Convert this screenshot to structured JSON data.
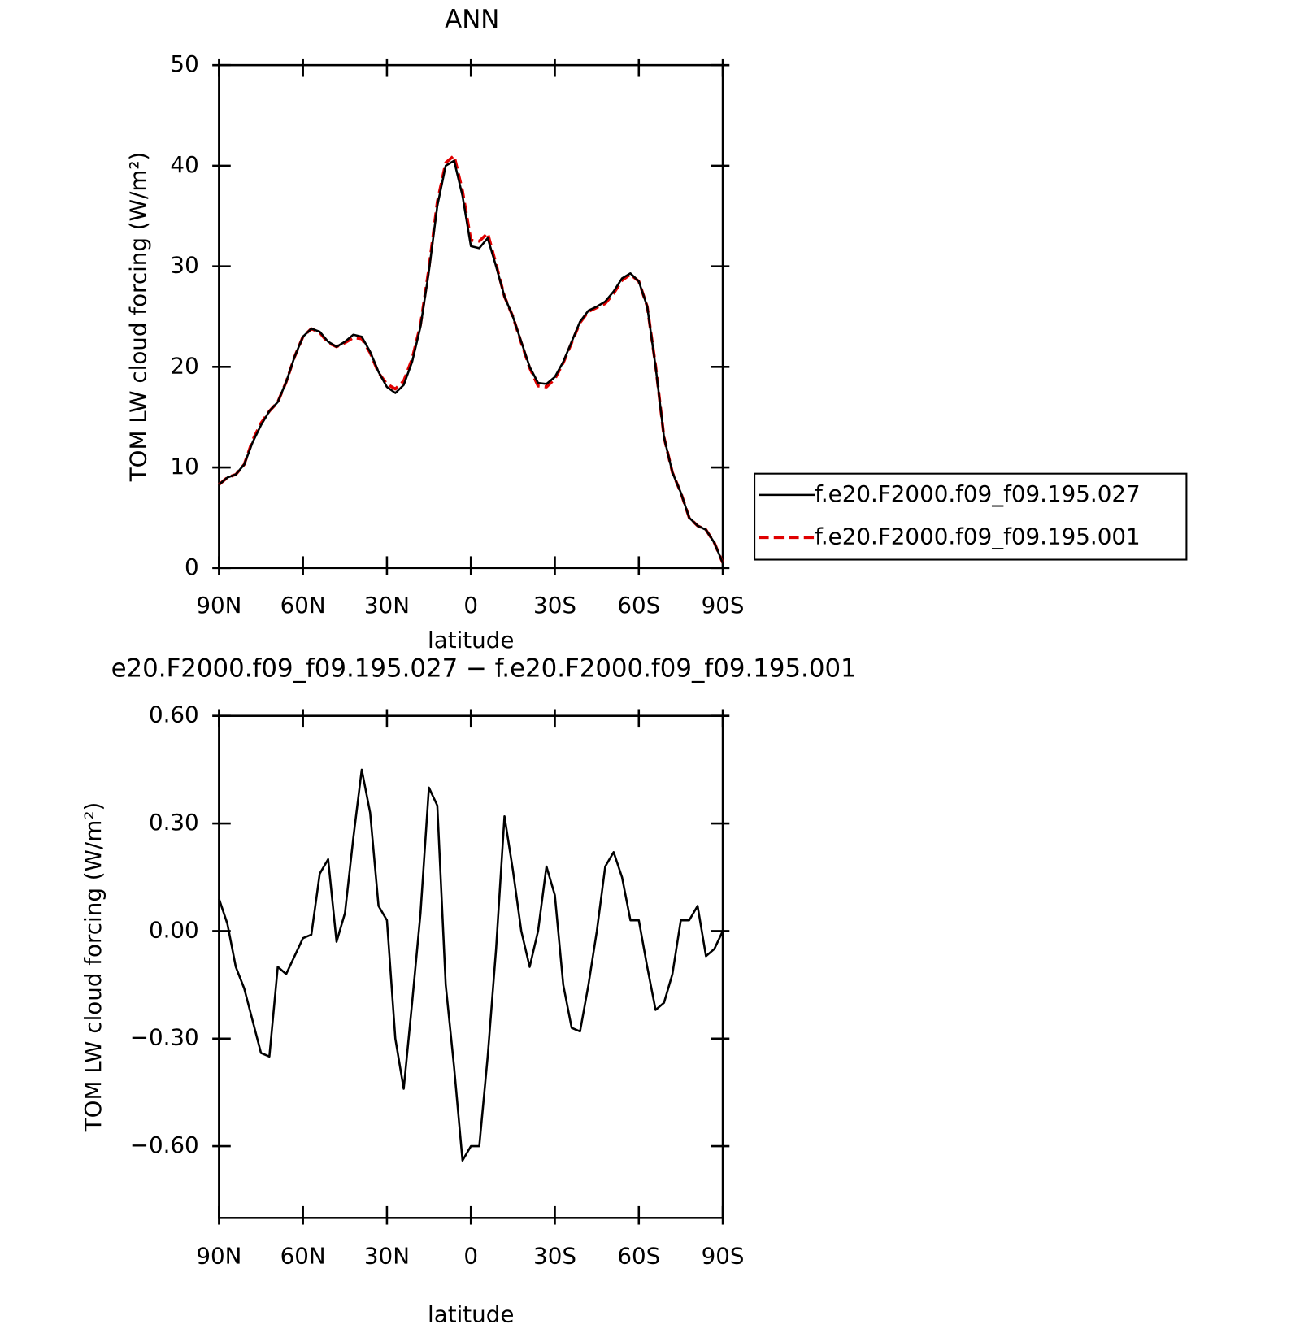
{
  "chart_data": [
    {
      "type": "line",
      "title": "ANN",
      "x_label": "latitude",
      "y_label": "TOM LW cloud forcing (W/m²)",
      "x": [
        90,
        87,
        84,
        81,
        78,
        75,
        72,
        69,
        66,
        63,
        60,
        57,
        54,
        51,
        48,
        45,
        42,
        39,
        36,
        33,
        30,
        27,
        24,
        21,
        18,
        15,
        12,
        9,
        6,
        3,
        0,
        -3,
        -6,
        -9,
        -12,
        -15,
        -18,
        -21,
        -24,
        -27,
        -30,
        -33,
        -36,
        -39,
        -42,
        -45,
        -48,
        -51,
        -54,
        -57,
        -60,
        -63,
        -66,
        -69,
        -72,
        -75,
        -78,
        -81,
        -84,
        -87,
        -90
      ],
      "series": [
        {
          "name": "f.e20.F2000.f09_f09.195.001",
          "color": "#e00000",
          "style": "dashed",
          "values": [
            8.3,
            9.0,
            9.3,
            10.3,
            12.7,
            14.4,
            15.6,
            16.5,
            18.5,
            21.0,
            23.0,
            23.8,
            23.4,
            22.4,
            22.0,
            22.4,
            22.9,
            22.8,
            21.4,
            19.4,
            18.3,
            17.8,
            18.6,
            20.8,
            24.2,
            29.8,
            36.4,
            40.3,
            41.0,
            37.5,
            32.6,
            32.5,
            33.3,
            30.2,
            27.0,
            25.0,
            22.4,
            19.9,
            18.1,
            18.0,
            18.8,
            20.4,
            22.4,
            24.4,
            25.5,
            25.9,
            26.3,
            27.3,
            28.6,
            29.2,
            28.5,
            26.0,
            20.1,
            13.0,
            9.5,
            7.5,
            5.0,
            4.2,
            3.8,
            2.5,
            0.5
          ]
        },
        {
          "name": "f.e20.F2000.f09_f09.195.027",
          "color": "#000000",
          "style": "solid",
          "values": [
            8.3,
            9.0,
            9.3,
            10.3,
            12.5,
            14.2,
            15.6,
            16.5,
            18.5,
            21.0,
            23.0,
            23.8,
            23.5,
            22.5,
            22.0,
            22.5,
            23.2,
            23.0,
            21.5,
            19.5,
            18.0,
            17.4,
            18.2,
            20.5,
            24.0,
            29.5,
            36.0,
            40.0,
            40.5,
            37.0,
            32.0,
            31.8,
            32.8,
            30.0,
            27.0,
            25.0,
            22.5,
            20.0,
            18.4,
            18.3,
            19.0,
            20.5,
            22.5,
            24.5,
            25.6,
            26.0,
            26.5,
            27.5,
            28.8,
            29.3,
            28.5,
            26.0,
            20.0,
            13.0,
            9.5,
            7.5,
            5.0,
            4.2,
            3.8,
            2.5,
            0.5
          ]
        }
      ],
      "xlim": [
        90,
        -90
      ],
      "xticks": [
        {
          "value": 90,
          "label": "90N"
        },
        {
          "value": 60,
          "label": "60N"
        },
        {
          "value": 30,
          "label": "30N"
        },
        0,
        {
          "value": -30,
          "label": "30S"
        },
        {
          "value": -60,
          "label": "60S"
        },
        {
          "value": -90,
          "label": "90S"
        }
      ],
      "ylim": [
        0,
        50
      ],
      "yticks": [
        0,
        10,
        20,
        30,
        40,
        50
      ],
      "legend": "right"
    },
    {
      "type": "line",
      "title": "e20.F2000.f09_f09.195.027 − f.e20.F2000.f09_f09.195.001",
      "x_label": "latitude",
      "y_label": "TOM LW cloud forcing (W/m²)",
      "x": [
        90,
        87,
        84,
        81,
        78,
        75,
        72,
        69,
        66,
        63,
        60,
        57,
        54,
        51,
        48,
        45,
        42,
        39,
        36,
        33,
        30,
        27,
        24,
        21,
        18,
        15,
        12,
        9,
        6,
        3,
        0,
        -3,
        -6,
        -9,
        -12,
        -15,
        -18,
        -21,
        -24,
        -27,
        -30,
        -33,
        -36,
        -39,
        -42,
        -45,
        -48,
        -51,
        -54,
        -57,
        -60,
        -63,
        -66,
        -69,
        -72,
        -75,
        -78,
        -81,
        -84,
        -87,
        -90
      ],
      "series": [
        {
          "color": "#000000",
          "style": "solid",
          "values": [
            0.09,
            0.02,
            -0.1,
            -0.16,
            -0.25,
            -0.34,
            -0.35,
            -0.1,
            -0.12,
            -0.07,
            -0.02,
            -0.01,
            0.16,
            0.2,
            -0.03,
            0.05,
            0.26,
            0.45,
            0.33,
            0.07,
            0.03,
            -0.3,
            -0.44,
            -0.2,
            0.05,
            0.4,
            0.35,
            -0.15,
            -0.38,
            -0.64,
            -0.6,
            -0.6,
            -0.35,
            -0.05,
            0.32,
            0.17,
            0.0,
            -0.1,
            0.0,
            0.18,
            0.1,
            -0.15,
            -0.27,
            -0.28,
            -0.15,
            0.0,
            0.18,
            0.22,
            0.15,
            0.03,
            0.03,
            -0.1,
            -0.22,
            -0.2,
            -0.12,
            0.03,
            0.03,
            0.07,
            -0.07,
            -0.05,
            0.0
          ]
        }
      ],
      "xlim": [
        90,
        -90
      ],
      "xticks": [
        {
          "value": 90,
          "label": "90N"
        },
        {
          "value": 60,
          "label": "60N"
        },
        {
          "value": 30,
          "label": "30N"
        },
        0,
        {
          "value": -30,
          "label": "30S"
        },
        {
          "value": -60,
          "label": "60S"
        },
        {
          "value": -90,
          "label": "90S"
        }
      ],
      "ylim": [
        -0.8,
        0.6
      ],
      "yticks": [
        {
          "value": 0.6,
          "label": "0.60"
        },
        {
          "value": 0.3,
          "label": "0.30"
        },
        {
          "value": 0,
          "label": "0.00"
        },
        {
          "value": -0.3,
          "label": "−0.30"
        },
        {
          "value": -0.6,
          "label": "−0.60"
        }
      ]
    }
  ]
}
